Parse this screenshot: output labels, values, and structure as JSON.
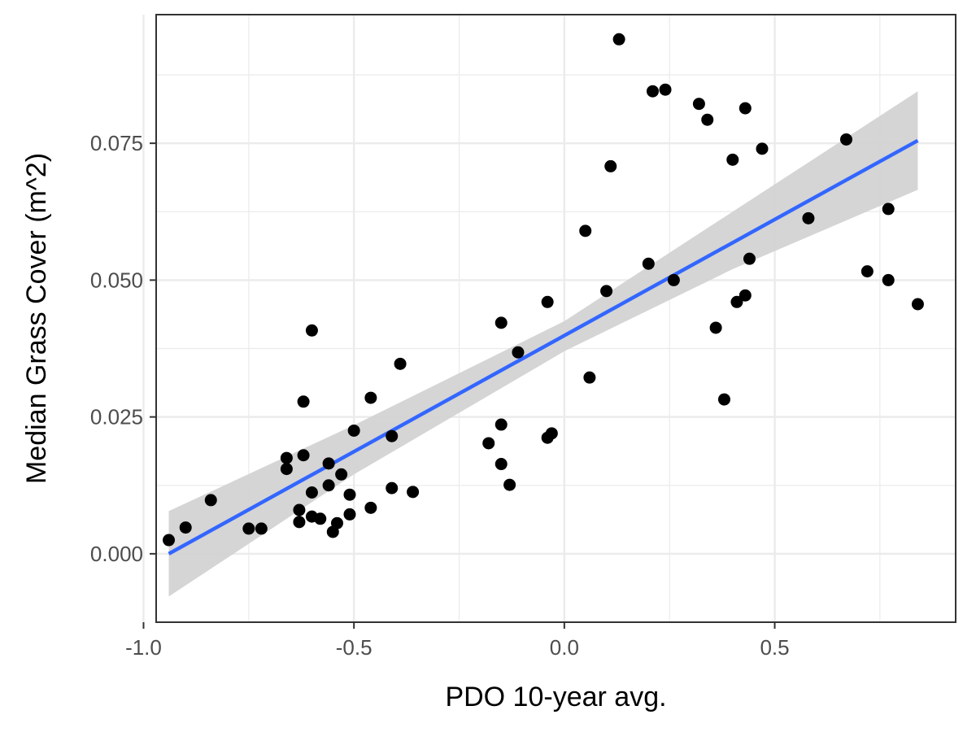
{
  "chart_data": {
    "type": "scatter",
    "title": "",
    "xlabel": "PDO 10-year avg.",
    "ylabel": "Median Grass Cover (m^2)",
    "xlim": [
      -0.97,
      0.93
    ],
    "ylim": [
      -0.0125,
      0.0985
    ],
    "x_ticks": [
      -1.0,
      -0.5,
      0.0,
      0.5
    ],
    "x_tick_labels": [
      "-1.0",
      "-0.5",
      "0.0",
      "0.5"
    ],
    "y_ticks": [
      0.0,
      0.025,
      0.05,
      0.075
    ],
    "y_tick_labels": [
      "0.000",
      "0.025",
      "0.050",
      "0.075"
    ],
    "grid": true,
    "points": [
      {
        "x": -0.94,
        "y": 0.0025
      },
      {
        "x": -0.9,
        "y": 0.0048
      },
      {
        "x": -0.84,
        "y": 0.0098
      },
      {
        "x": -0.75,
        "y": 0.0046
      },
      {
        "x": -0.72,
        "y": 0.0046
      },
      {
        "x": -0.66,
        "y": 0.0175
      },
      {
        "x": -0.66,
        "y": 0.0155
      },
      {
        "x": -0.63,
        "y": 0.008
      },
      {
        "x": -0.63,
        "y": 0.0058
      },
      {
        "x": -0.62,
        "y": 0.018
      },
      {
        "x": -0.62,
        "y": 0.0278
      },
      {
        "x": -0.6,
        "y": 0.0408
      },
      {
        "x": -0.6,
        "y": 0.0112
      },
      {
        "x": -0.6,
        "y": 0.0068
      },
      {
        "x": -0.58,
        "y": 0.0064
      },
      {
        "x": -0.56,
        "y": 0.0165
      },
      {
        "x": -0.56,
        "y": 0.0125
      },
      {
        "x": -0.55,
        "y": 0.004
      },
      {
        "x": -0.53,
        "y": 0.0145
      },
      {
        "x": -0.54,
        "y": 0.0056
      },
      {
        "x": -0.51,
        "y": 0.0108
      },
      {
        "x": -0.51,
        "y": 0.0072
      },
      {
        "x": -0.5,
        "y": 0.0225
      },
      {
        "x": -0.46,
        "y": 0.0285
      },
      {
        "x": -0.46,
        "y": 0.0084
      },
      {
        "x": -0.41,
        "y": 0.0215
      },
      {
        "x": -0.41,
        "y": 0.012
      },
      {
        "x": -0.39,
        "y": 0.0347
      },
      {
        "x": -0.36,
        "y": 0.0113
      },
      {
        "x": -0.18,
        "y": 0.0202
      },
      {
        "x": -0.15,
        "y": 0.0422
      },
      {
        "x": -0.15,
        "y": 0.0236
      },
      {
        "x": -0.15,
        "y": 0.0164
      },
      {
        "x": -0.13,
        "y": 0.0126
      },
      {
        "x": -0.11,
        "y": 0.0368
      },
      {
        "x": -0.04,
        "y": 0.046
      },
      {
        "x": -0.04,
        "y": 0.0212
      },
      {
        "x": -0.03,
        "y": 0.022
      },
      {
        "x": 0.05,
        "y": 0.059
      },
      {
        "x": 0.06,
        "y": 0.0322
      },
      {
        "x": 0.1,
        "y": 0.048
      },
      {
        "x": 0.11,
        "y": 0.0708
      },
      {
        "x": 0.13,
        "y": 0.094
      },
      {
        "x": 0.2,
        "y": 0.053
      },
      {
        "x": 0.21,
        "y": 0.0845
      },
      {
        "x": 0.24,
        "y": 0.0848
      },
      {
        "x": 0.26,
        "y": 0.05
      },
      {
        "x": 0.32,
        "y": 0.0822
      },
      {
        "x": 0.34,
        "y": 0.0793
      },
      {
        "x": 0.36,
        "y": 0.0413
      },
      {
        "x": 0.38,
        "y": 0.0282
      },
      {
        "x": 0.4,
        "y": 0.072
      },
      {
        "x": 0.41,
        "y": 0.046
      },
      {
        "x": 0.43,
        "y": 0.0814
      },
      {
        "x": 0.43,
        "y": 0.0472
      },
      {
        "x": 0.44,
        "y": 0.0539
      },
      {
        "x": 0.47,
        "y": 0.074
      },
      {
        "x": 0.58,
        "y": 0.0613
      },
      {
        "x": 0.67,
        "y": 0.0757
      },
      {
        "x": 0.72,
        "y": 0.0516
      },
      {
        "x": 0.77,
        "y": 0.063
      },
      {
        "x": 0.77,
        "y": 0.05
      },
      {
        "x": 0.84,
        "y": 0.0456
      }
    ],
    "fit_line": {
      "method": "linear",
      "x": [
        -0.94,
        0.84
      ],
      "y": [
        0.0,
        0.0755
      ],
      "color": "#3366ff"
    },
    "confidence_band": {
      "x": [
        -0.94,
        -0.5,
        0.0,
        0.4,
        0.84
      ],
      "lower": [
        -0.0078,
        0.0145,
        0.037,
        0.052,
        0.0665
      ],
      "upper": [
        0.0078,
        0.0235,
        0.0425,
        0.0625,
        0.0845
      ],
      "color": "#d3d3d3"
    },
    "colors": {
      "points": "#000000",
      "panel_border": "#333333",
      "grid": "#ebebeb"
    }
  }
}
